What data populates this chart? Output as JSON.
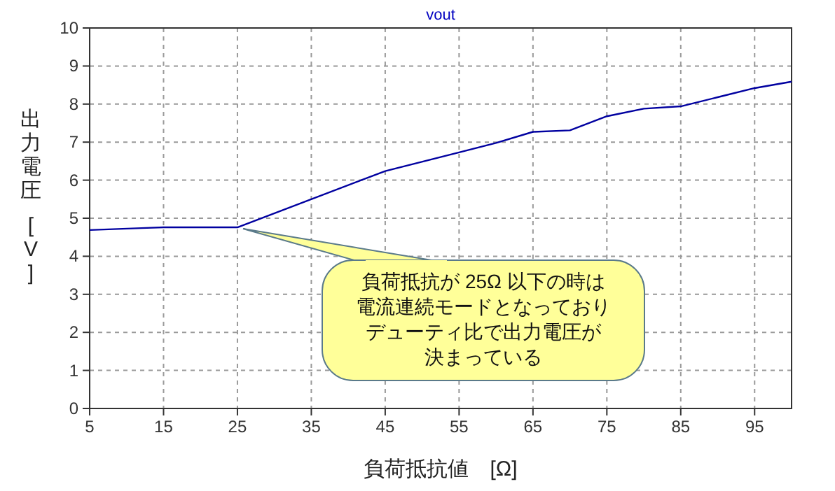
{
  "chart_data": {
    "type": "line",
    "title": "vout",
    "xlabel": "負荷抵抗値　[Ω]",
    "ylabel": "出力電圧　[V]",
    "x": [
      5,
      12,
      15,
      25,
      45,
      55,
      60,
      65,
      70,
      75,
      80,
      85,
      90,
      95,
      100
    ],
    "series": [
      {
        "color": "#0000a0",
        "values": [
          4.69,
          4.74,
          4.76,
          4.76,
          6.24,
          6.73,
          6.98,
          7.27,
          7.31,
          7.68,
          7.88,
          7.94,
          8.18,
          8.42,
          8.59
        ]
      }
    ],
    "xlim": [
      5,
      100
    ],
    "xticks": [
      5,
      15,
      25,
      35,
      45,
      55,
      65,
      75,
      85,
      95
    ],
    "ylim": [
      0,
      10
    ],
    "yticks": [
      0,
      1,
      2,
      3,
      4,
      5,
      6,
      7,
      8,
      9,
      10
    ],
    "grid": true,
    "marker": "none",
    "line_style": "solid",
    "annotations": [
      {
        "text": "負荷抵抗が 25Ω 以下の時は電流連続モードとなっておりデューティ比で出力電圧が決まっている",
        "x": 25,
        "y": 4.76
      }
    ]
  }
}
